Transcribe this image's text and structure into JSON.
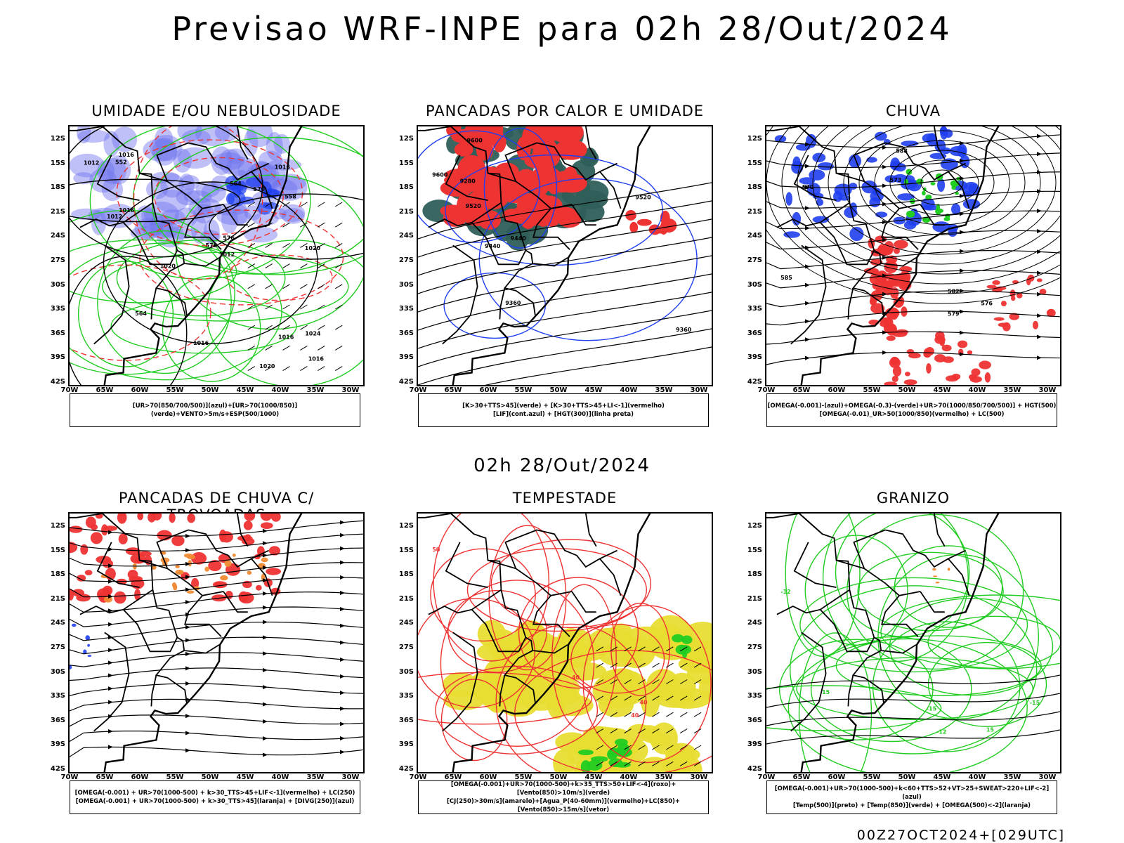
{
  "title": "Previsao WRF-INPE  para 02h 28/Out/2024",
  "mid_time": "02h 28/Out/2024",
  "footer": "00Z27OCT2024+[029UTC]",
  "axes": {
    "lat_labels": [
      "12S",
      "15S",
      "18S",
      "21S",
      "24S",
      "27S",
      "30S",
      "33S",
      "36S",
      "39S",
      "42S"
    ],
    "lon_labels": [
      "70W",
      "65W",
      "60W",
      "55W",
      "50W",
      "45W",
      "40W",
      "35W",
      "30W"
    ]
  },
  "colors": {
    "humidity_blue": "#6f74ee",
    "green": "#22cc22",
    "red": "#ee3333",
    "dark_teal": "#2f5f5a",
    "yellow": "#e8dd33",
    "orange": "#f08a33",
    "blue": "#1f3ff0"
  },
  "panels": [
    {
      "title": "UMIDADE E/OU NEBULOSIDADE",
      "legend": [
        "[UR>70(850/700/500)](azul)+[UR>70(1000/850)](verde)+VENTO>5m/s+ESP(500/1000)"
      ],
      "contour_labels": [
        "1012",
        "1012",
        "1012",
        "1016",
        "1016",
        "1016",
        "1020",
        "1020",
        "1016",
        "1016",
        "1020",
        "1016",
        "576",
        "576",
        "570",
        "564",
        "564",
        "558",
        "552",
        "1024"
      ]
    },
    {
      "title": "PANCADAS POR CALOR E UMIDADE",
      "legend": [
        "[K>30+TTS>45](verde) + [K>30+TTS>45+LI<-1](vermelho)",
        "[LIF](cont.azul) + [HGT(300)](linha preta)"
      ],
      "contour_labels": [
        "9600",
        "9600",
        "9520",
        "9520",
        "9440",
        "9440",
        "9360",
        "9360",
        "9280"
      ]
    },
    {
      "title": "CHUVA",
      "legend": [
        "[OMEGA(-0.001)-(azul)+OMEGA(-0.3)-(verde)+UR>70(1000/850/700/500)] + HGT(500)",
        "[OMEGA(-0.01)_UR>50(1000/850)(vermelho) + LC(500)"
      ],
      "contour_labels": [
        "585",
        "588",
        "582",
        "579",
        "576",
        "573",
        "570"
      ]
    },
    {
      "title": "PANCADAS DE CHUVA C/ TROVOADAS",
      "legend": [
        "[OMEGA(-0.001) + UR>70(1000-500) + k>30_TTS>45+LIF<-1](vermelho) + LC(250)",
        "[OMEGA(-0.001) + UR>70(1000-500) + k>30_TTS>45](laranja) + [DIVG(250)](azul)"
      ],
      "contour_labels": []
    },
    {
      "title": "TEMPESTADE",
      "legend": [
        "[OMEGA(-0.001)+UR>70(1000-500)+k>35_TTS>50+LIF<-4](roxo)+[Vento(850)>10m/s](verde)",
        "[CJ(250)>30m/s](amarelo)+[Agua_P(40-60mm)](vermelho)+LC(850)+[Vento(850)>15m/s](vetor)"
      ],
      "contour_labels": [
        "50",
        "40",
        "40",
        "40"
      ]
    },
    {
      "title": "GRANIZO",
      "legend": [
        "[OMEGA(-0.001)+UR>70(1000-500)+k<60+TTS>52+VT>25+SWEAT>220+LIF<-2](azul)",
        "[Temp(500)](preto) + [Temp(850)](verde) + [OMEGA(500)<-2](laranja)"
      ],
      "contour_labels": [
        "-12",
        "-12",
        "-15",
        "-15",
        "15",
        "15"
      ]
    }
  ]
}
